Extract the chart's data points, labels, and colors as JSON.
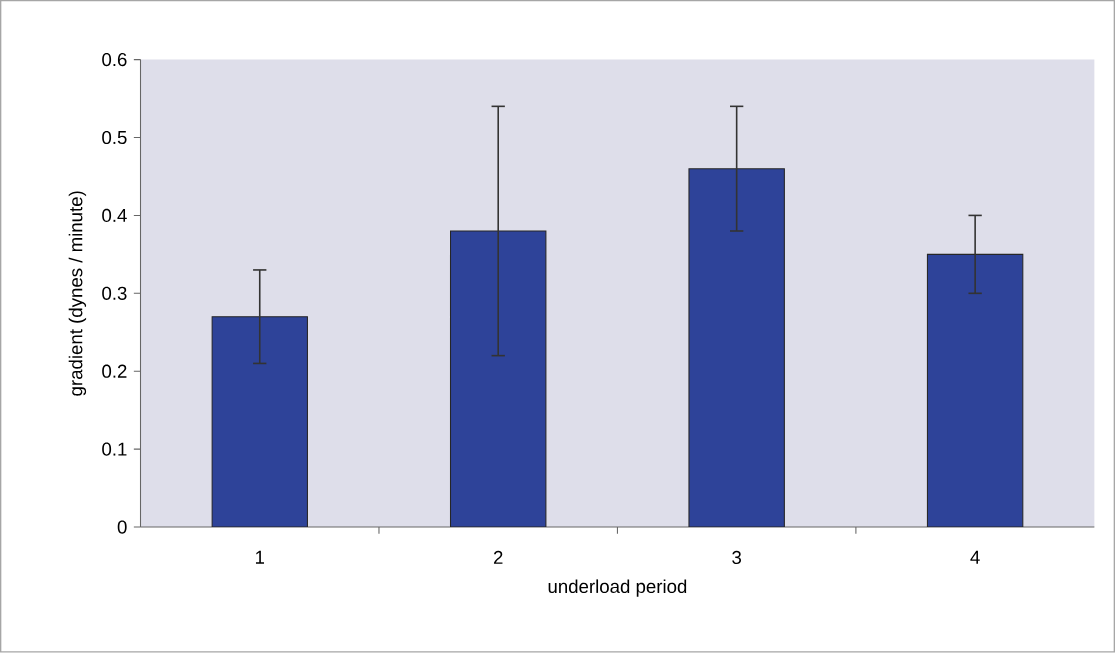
{
  "chart_data": {
    "type": "bar",
    "xlabel": "underload period",
    "ylabel": "gradient (dynes / minute)",
    "categories": [
      "1",
      "2",
      "3",
      "4"
    ],
    "values": [
      0.27,
      0.38,
      0.46,
      0.35
    ],
    "errors": [
      0.06,
      0.16,
      0.08,
      0.05
    ],
    "color": "#2e4399",
    "ylim": [
      0,
      0.6
    ],
    "yticks": [
      0,
      0.1,
      0.2,
      0.3,
      0.4,
      0.5,
      0.6
    ],
    "grid": false
  }
}
